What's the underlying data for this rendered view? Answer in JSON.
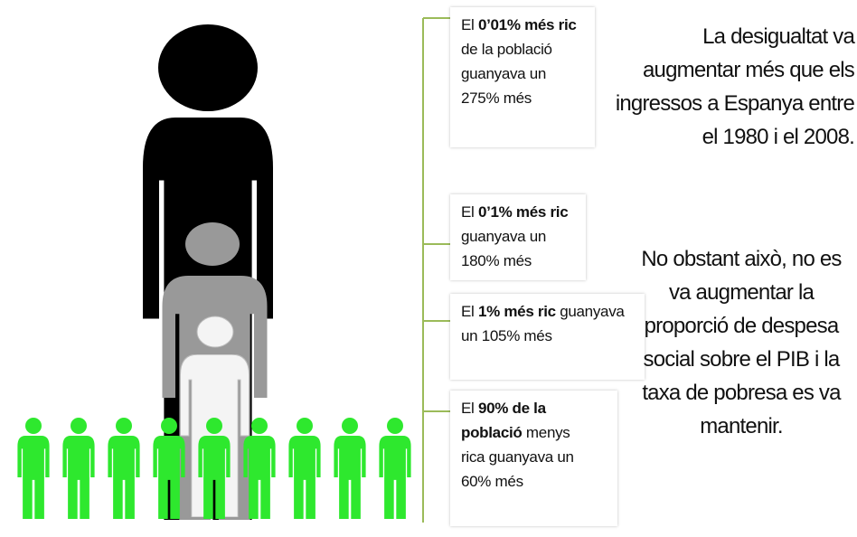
{
  "boxes": [
    {
      "pre": "El ",
      "bold": "0’01% més ric",
      "post": " de la població guanyava un 275% més"
    },
    {
      "pre": "El ",
      "bold": "0’1% més ric",
      "post": " guanyava un 180% més"
    },
    {
      "pre": "El ",
      "bold": "1% més ric",
      "post": " guanyava un 105% més"
    },
    {
      "pre": "El ",
      "bold": "90% de la població",
      "post": " menys rica guanyava un 60% més"
    }
  ],
  "heading": "La desigualtat va augmentar més que els ingressos a Espanya entre el 1980 i el 2008.",
  "note": "No obstant això, no es va augmentar la proporció de despesa social sobre el PIB i la taxa de pobresa es va mantenir."
}
